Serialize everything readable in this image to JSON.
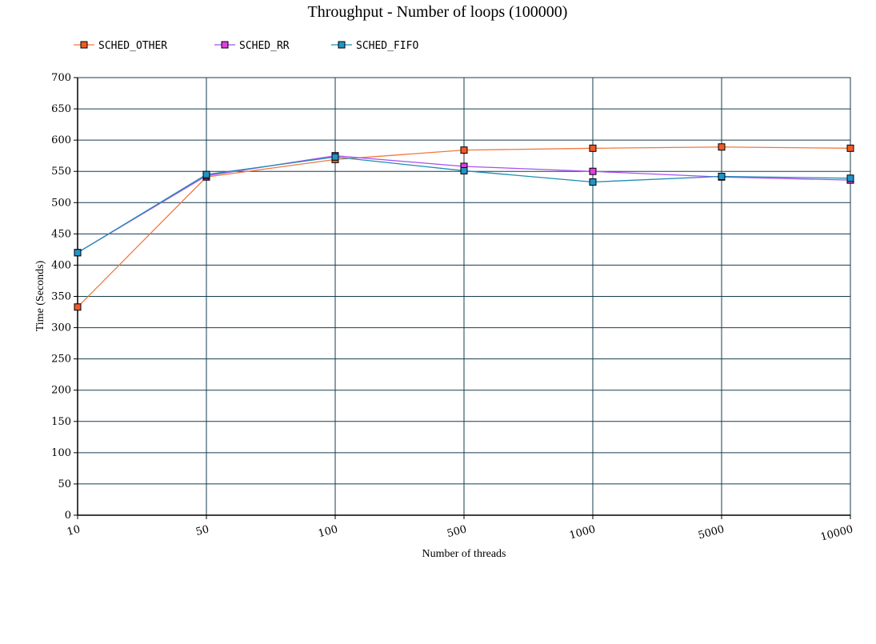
{
  "chart_data": {
    "type": "line",
    "title": "Throughput - Number of loops (100000)",
    "xlabel": "Number of threads",
    "ylabel": "Time (Seconds)",
    "categories": [
      "10",
      "50",
      "100",
      "500",
      "1000",
      "5000",
      "10000"
    ],
    "ylim": [
      0,
      700
    ],
    "yticks": [
      0,
      50,
      100,
      150,
      200,
      250,
      300,
      350,
      400,
      450,
      500,
      550,
      600,
      650,
      700
    ],
    "grid": true,
    "legend_position": "top-left",
    "series": [
      {
        "name": "SCHED_OTHER",
        "color": "#f0783c",
        "marker_color": "#f05a28",
        "values": [
          333,
          541,
          569,
          584,
          587,
          589,
          587
        ]
      },
      {
        "name": "SCHED_RR",
        "color": "#a850f0",
        "marker_color": "#e040e0",
        "values": [
          420,
          543,
          575,
          558,
          550,
          541,
          536
        ]
      },
      {
        "name": "SCHED_FIFO",
        "color": "#1e8cb4",
        "marker_color": "#1e96c8",
        "values": [
          420,
          545,
          573,
          551,
          533,
          542,
          539
        ]
      }
    ],
    "plot_background": "#ffffff",
    "grid_color": "#143c50"
  }
}
